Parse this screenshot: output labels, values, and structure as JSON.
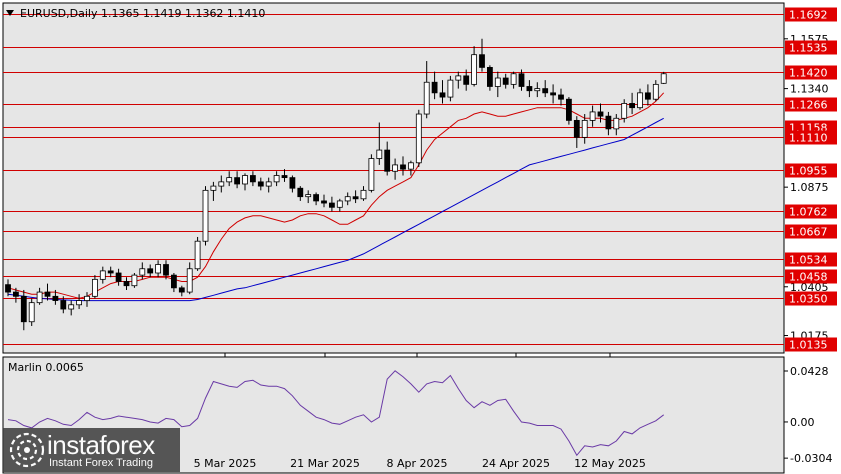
{
  "header": {
    "symbol_info": "EURUSD,Daily  1.1365 1.1419 1.1362 1.1410"
  },
  "indicator": {
    "title": "Marlin 0.0065",
    "axis_ticks": [
      "0.0428",
      "0.00",
      "-0.0304"
    ]
  },
  "watermark": {
    "brand": "instaforex",
    "tagline": "Instant Forex Trading"
  },
  "colors": {
    "background": "#e6e6e6",
    "level_line": "#d00000",
    "level_tag": "#e00000",
    "fast_ma": "#d00000",
    "slow_ma": "#0000c8",
    "indicator_line": "#6a3aa6"
  },
  "chart_data": [
    {
      "type": "candlestick",
      "title": "EURUSD,Daily  1.1365 1.1419 1.1362 1.1410",
      "x_ticks": [
        "5 Mar 2025",
        "21 Mar 2025",
        "8 Apr 2025",
        "24 Apr 2025",
        "12 May 2025"
      ],
      "y_ticks": [
        "1.1575",
        "1.1340",
        "1.0875",
        "1.0405",
        "1.0175"
      ],
      "levels": [
        "1.1692",
        "1.1535",
        "1.1420",
        "1.1266",
        "1.1158",
        "1.1110",
        "1.0955",
        "1.0762",
        "1.0667",
        "1.0534",
        "1.0458",
        "1.0350",
        "1.0135"
      ],
      "candles": [
        [
          1.0415,
          1.044,
          1.036,
          1.038
        ],
        [
          1.038,
          1.04,
          1.033,
          1.036
        ],
        [
          1.036,
          1.039,
          1.02,
          1.024
        ],
        [
          1.024,
          1.035,
          1.022,
          1.033
        ],
        [
          1.033,
          1.04,
          1.032,
          1.038
        ],
        [
          1.038,
          1.042,
          1.034,
          1.036
        ],
        [
          1.036,
          1.039,
          1.032,
          1.034
        ],
        [
          1.034,
          1.036,
          1.028,
          1.03
        ],
        [
          1.03,
          1.034,
          1.027,
          1.032
        ],
        [
          1.032,
          1.037,
          1.03,
          1.034
        ],
        [
          1.034,
          1.038,
          1.031,
          1.036
        ],
        [
          1.036,
          1.046,
          1.035,
          1.044
        ],
        [
          1.044,
          1.05,
          1.042,
          1.048
        ],
        [
          1.048,
          1.05,
          1.045,
          1.047
        ],
        [
          1.047,
          1.049,
          1.041,
          1.043
        ],
        [
          1.043,
          1.045,
          1.039,
          1.041
        ],
        [
          1.041,
          1.047,
          1.04,
          1.046
        ],
        [
          1.046,
          1.052,
          1.044,
          1.049
        ],
        [
          1.049,
          1.051,
          1.045,
          1.047
        ],
        [
          1.047,
          1.053,
          1.045,
          1.051
        ],
        [
          1.051,
          1.053,
          1.044,
          1.046
        ],
        [
          1.046,
          1.047,
          1.038,
          1.04
        ],
        [
          1.04,
          1.041,
          1.036,
          1.038
        ],
        [
          1.038,
          1.052,
          1.037,
          1.049
        ],
        [
          1.049,
          1.064,
          1.048,
          1.062
        ],
        [
          1.062,
          1.088,
          1.06,
          1.086
        ],
        [
          1.086,
          1.09,
          1.081,
          1.088
        ],
        [
          1.088,
          1.093,
          1.085,
          1.09
        ],
        [
          1.09,
          1.095,
          1.088,
          1.092
        ],
        [
          1.092,
          1.095,
          1.087,
          1.089
        ],
        [
          1.089,
          1.094,
          1.086,
          1.093
        ],
        [
          1.093,
          1.095,
          1.088,
          1.09
        ],
        [
          1.09,
          1.092,
          1.086,
          1.088
        ],
        [
          1.088,
          1.092,
          1.085,
          1.09
        ],
        [
          1.09,
          1.095,
          1.088,
          1.093
        ],
        [
          1.093,
          1.096,
          1.09,
          1.092
        ],
        [
          1.092,
          1.093,
          1.085,
          1.087
        ],
        [
          1.087,
          1.088,
          1.081,
          1.083
        ],
        [
          1.083,
          1.086,
          1.08,
          1.084
        ],
        [
          1.084,
          1.085,
          1.079,
          1.081
        ],
        [
          1.081,
          1.084,
          1.078,
          1.08
        ],
        [
          1.08,
          1.083,
          1.076,
          1.078
        ],
        [
          1.078,
          1.082,
          1.076,
          1.081
        ],
        [
          1.081,
          1.085,
          1.079,
          1.083
        ],
        [
          1.083,
          1.086,
          1.08,
          1.082
        ],
        [
          1.082,
          1.088,
          1.081,
          1.086
        ],
        [
          1.086,
          1.103,
          1.085,
          1.101
        ],
        [
          1.101,
          1.118,
          1.098,
          1.105
        ],
        [
          1.105,
          1.109,
          1.093,
          1.095
        ],
        [
          1.095,
          1.101,
          1.091,
          1.098
        ],
        [
          1.098,
          1.102,
          1.093,
          1.096
        ],
        [
          1.096,
          1.1,
          1.093,
          1.099
        ],
        [
          1.099,
          1.124,
          1.097,
          1.122
        ],
        [
          1.122,
          1.147,
          1.12,
          1.137
        ],
        [
          1.137,
          1.142,
          1.129,
          1.132
        ],
        [
          1.132,
          1.138,
          1.127,
          1.13
        ],
        [
          1.13,
          1.14,
          1.128,
          1.138
        ],
        [
          1.138,
          1.142,
          1.134,
          1.14
        ],
        [
          1.14,
          1.143,
          1.133,
          1.136
        ],
        [
          1.136,
          1.154,
          1.135,
          1.15
        ],
        [
          1.15,
          1.1575,
          1.142,
          1.144
        ],
        [
          1.144,
          1.145,
          1.133,
          1.135
        ],
        [
          1.135,
          1.142,
          1.13,
          1.139
        ],
        [
          1.139,
          1.141,
          1.134,
          1.136
        ],
        [
          1.136,
          1.142,
          1.134,
          1.141
        ],
        [
          1.141,
          1.143,
          1.133,
          1.135
        ],
        [
          1.135,
          1.138,
          1.13,
          1.133
        ],
        [
          1.133,
          1.137,
          1.13,
          1.134
        ],
        [
          1.134,
          1.138,
          1.13,
          1.132
        ],
        [
          1.132,
          1.136,
          1.127,
          1.131
        ],
        [
          1.131,
          1.134,
          1.126,
          1.129
        ],
        [
          1.129,
          1.13,
          1.117,
          1.119
        ],
        [
          1.119,
          1.121,
          1.106,
          1.111
        ],
        [
          1.111,
          1.122,
          1.108,
          1.119
        ],
        [
          1.119,
          1.126,
          1.116,
          1.123
        ],
        [
          1.123,
          1.127,
          1.118,
          1.121
        ],
        [
          1.121,
          1.123,
          1.112,
          1.115
        ],
        [
          1.115,
          1.122,
          1.112,
          1.12
        ],
        [
          1.12,
          1.129,
          1.118,
          1.127
        ],
        [
          1.127,
          1.132,
          1.122,
          1.125
        ],
        [
          1.125,
          1.134,
          1.124,
          1.132
        ],
        [
          1.132,
          1.136,
          1.126,
          1.129
        ],
        [
          1.129,
          1.138,
          1.128,
          1.136
        ],
        [
          1.1365,
          1.1419,
          1.1362,
          1.141
        ]
      ],
      "fast_ma": [
        1.04,
        1.039,
        1.038,
        1.037,
        1.037,
        1.038,
        1.038,
        1.037,
        1.036,
        1.035,
        1.036,
        1.038,
        1.04,
        1.042,
        1.043,
        1.043,
        1.043,
        1.044,
        1.045,
        1.045,
        1.045,
        1.044,
        1.043,
        1.043,
        1.045,
        1.05,
        1.057,
        1.063,
        1.068,
        1.071,
        1.073,
        1.074,
        1.074,
        1.073,
        1.072,
        1.071,
        1.072,
        1.074,
        1.075,
        1.075,
        1.074,
        1.072,
        1.07,
        1.07,
        1.072,
        1.074,
        1.079,
        1.083,
        1.086,
        1.088,
        1.09,
        1.092,
        1.098,
        1.105,
        1.11,
        1.113,
        1.116,
        1.119,
        1.12,
        1.122,
        1.123,
        1.122,
        1.121,
        1.121,
        1.122,
        1.123,
        1.124,
        1.125,
        1.125,
        1.125,
        1.125,
        1.124,
        1.122,
        1.12,
        1.12,
        1.12,
        1.119,
        1.119,
        1.12,
        1.121,
        1.123,
        1.125,
        1.128,
        1.132
      ],
      "slow_ma": [
        1.037,
        1.0365,
        1.036,
        1.0355,
        1.035,
        1.0348,
        1.0345,
        1.0343,
        1.0341,
        1.034,
        1.034,
        1.034,
        1.034,
        1.034,
        1.034,
        1.034,
        1.034,
        1.034,
        1.034,
        1.034,
        1.034,
        1.034,
        1.034,
        1.034,
        1.0345,
        1.0355,
        1.0365,
        1.0375,
        1.0385,
        1.0395,
        1.04,
        1.041,
        1.042,
        1.043,
        1.044,
        1.045,
        1.046,
        1.047,
        1.048,
        1.049,
        1.05,
        1.051,
        1.052,
        1.053,
        1.0545,
        1.056,
        1.058,
        1.06,
        1.062,
        1.064,
        1.066,
        1.068,
        1.07,
        1.072,
        1.074,
        1.076,
        1.078,
        1.08,
        1.082,
        1.084,
        1.086,
        1.088,
        1.09,
        1.092,
        1.094,
        1.096,
        1.098,
        1.099,
        1.1,
        1.101,
        1.102,
        1.103,
        1.104,
        1.105,
        1.106,
        1.107,
        1.108,
        1.109,
        1.11,
        1.112,
        1.114,
        1.116,
        1.118,
        1.12
      ]
    },
    {
      "type": "line",
      "title": "Marlin 0.0065",
      "y_ticks": [
        "0.0428",
        "0.00",
        "-0.0304"
      ],
      "ylim": [
        -0.037,
        0.047
      ],
      "values": [
        0.002,
        0.001,
        -0.003,
        -0.005,
        0.0,
        0.003,
        0.001,
        -0.002,
        -0.003,
        0.002,
        0.008,
        0.004,
        0.002,
        0.003,
        0.005,
        0.004,
        0.003,
        0.002,
        0.0,
        -0.001,
        0.003,
        0.002,
        -0.004,
        -0.003,
        0.003,
        0.02,
        0.034,
        0.032,
        0.03,
        0.029,
        0.034,
        0.035,
        0.031,
        0.03,
        0.03,
        0.028,
        0.022,
        0.014,
        0.009,
        0.004,
        0.002,
        -0.001,
        -0.002,
        0.001,
        0.004,
        0.006,
        0.0,
        0.004,
        0.036,
        0.043,
        0.038,
        0.032,
        0.025,
        0.032,
        0.034,
        0.033,
        0.039,
        0.028,
        0.018,
        0.012,
        0.017,
        0.014,
        0.018,
        0.019,
        0.009,
        0.0,
        -0.001,
        -0.003,
        -0.003,
        -0.003,
        -0.006,
        -0.016,
        -0.028,
        -0.02,
        -0.021,
        -0.019,
        -0.02,
        -0.016,
        -0.008,
        -0.01,
        -0.005,
        -0.002,
        0.001,
        0.006
      ]
    }
  ]
}
